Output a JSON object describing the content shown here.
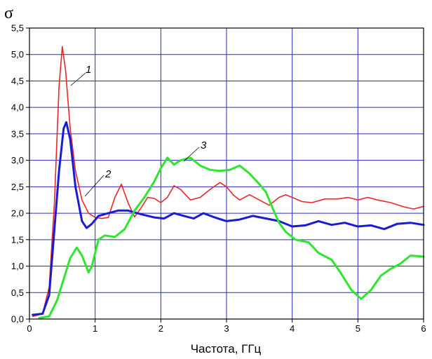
{
  "chart_data": {
    "type": "line",
    "title": "",
    "xlabel": "Частота, ГГц",
    "ylabel": "σ",
    "xlim": [
      0,
      6
    ],
    "ylim": [
      0,
      5.5
    ],
    "x_ticks": [
      "0",
      "1",
      "2",
      "3",
      "4",
      "5",
      "6"
    ],
    "y_ticks": [
      "0,0",
      "0,5",
      "1,0",
      "1,5",
      "2,0",
      "2,5",
      "3,0",
      "3,5",
      "4,0",
      "4,5",
      "5,0",
      "5,5"
    ],
    "grid": true,
    "series": [
      {
        "name": "1",
        "color": "#e8262b",
        "points": [
          [
            0.05,
            0.05
          ],
          [
            0.2,
            0.1
          ],
          [
            0.3,
            0.6
          ],
          [
            0.38,
            2.2
          ],
          [
            0.45,
            4.4
          ],
          [
            0.5,
            5.15
          ],
          [
            0.55,
            4.7
          ],
          [
            0.62,
            3.6
          ],
          [
            0.7,
            2.8
          ],
          [
            0.8,
            2.25
          ],
          [
            0.9,
            2.0
          ],
          [
            1.0,
            1.92
          ],
          [
            1.1,
            1.9
          ],
          [
            1.2,
            1.92
          ],
          [
            1.3,
            2.3
          ],
          [
            1.4,
            2.55
          ],
          [
            1.5,
            2.2
          ],
          [
            1.6,
            1.93
          ],
          [
            1.7,
            2.1
          ],
          [
            1.8,
            2.3
          ],
          [
            1.9,
            2.28
          ],
          [
            2.0,
            2.2
          ],
          [
            2.1,
            2.3
          ],
          [
            2.2,
            2.52
          ],
          [
            2.3,
            2.45
          ],
          [
            2.45,
            2.25
          ],
          [
            2.6,
            2.3
          ],
          [
            2.75,
            2.45
          ],
          [
            2.9,
            2.58
          ],
          [
            3.0,
            2.5
          ],
          [
            3.1,
            2.35
          ],
          [
            3.2,
            2.25
          ],
          [
            3.35,
            2.35
          ],
          [
            3.5,
            2.25
          ],
          [
            3.65,
            2.15
          ],
          [
            3.8,
            2.3
          ],
          [
            3.9,
            2.35
          ],
          [
            4.0,
            2.3
          ],
          [
            4.15,
            2.22
          ],
          [
            4.3,
            2.2
          ],
          [
            4.5,
            2.27
          ],
          [
            4.7,
            2.27
          ],
          [
            4.85,
            2.3
          ],
          [
            5.0,
            2.25
          ],
          [
            5.15,
            2.3
          ],
          [
            5.3,
            2.25
          ],
          [
            5.5,
            2.2
          ],
          [
            5.7,
            2.12
          ],
          [
            5.85,
            2.08
          ],
          [
            6.0,
            2.13
          ]
        ]
      },
      {
        "name": "2",
        "color": "#1b1bd6",
        "points": [
          [
            0.05,
            0.08
          ],
          [
            0.2,
            0.1
          ],
          [
            0.3,
            0.45
          ],
          [
            0.38,
            1.7
          ],
          [
            0.45,
            2.8
          ],
          [
            0.52,
            3.6
          ],
          [
            0.56,
            3.72
          ],
          [
            0.62,
            3.4
          ],
          [
            0.7,
            2.5
          ],
          [
            0.8,
            1.85
          ],
          [
            0.87,
            1.72
          ],
          [
            0.95,
            1.8
          ],
          [
            1.05,
            1.95
          ],
          [
            1.2,
            2.0
          ],
          [
            1.35,
            2.05
          ],
          [
            1.5,
            2.05
          ],
          [
            1.7,
            1.98
          ],
          [
            1.9,
            1.92
          ],
          [
            2.05,
            1.9
          ],
          [
            2.2,
            2.0
          ],
          [
            2.35,
            1.95
          ],
          [
            2.5,
            1.9
          ],
          [
            2.65,
            2.0
          ],
          [
            2.8,
            1.93
          ],
          [
            3.0,
            1.85
          ],
          [
            3.2,
            1.88
          ],
          [
            3.4,
            1.95
          ],
          [
            3.6,
            1.9
          ],
          [
            3.8,
            1.85
          ],
          [
            4.0,
            1.75
          ],
          [
            4.2,
            1.77
          ],
          [
            4.4,
            1.85
          ],
          [
            4.6,
            1.78
          ],
          [
            4.8,
            1.82
          ],
          [
            5.0,
            1.75
          ],
          [
            5.2,
            1.77
          ],
          [
            5.4,
            1.7
          ],
          [
            5.6,
            1.8
          ],
          [
            5.8,
            1.82
          ],
          [
            6.0,
            1.78
          ]
        ]
      },
      {
        "name": "3",
        "color": "#2ee62e",
        "points": [
          [
            0.15,
            0.02
          ],
          [
            0.3,
            0.05
          ],
          [
            0.42,
            0.35
          ],
          [
            0.52,
            0.75
          ],
          [
            0.62,
            1.15
          ],
          [
            0.72,
            1.35
          ],
          [
            0.8,
            1.2
          ],
          [
            0.9,
            0.88
          ],
          [
            0.95,
            1.0
          ],
          [
            1.05,
            1.5
          ],
          [
            1.15,
            1.58
          ],
          [
            1.3,
            1.55
          ],
          [
            1.45,
            1.7
          ],
          [
            1.6,
            2.05
          ],
          [
            1.75,
            2.3
          ],
          [
            1.9,
            2.6
          ],
          [
            2.0,
            2.85
          ],
          [
            2.1,
            3.05
          ],
          [
            2.2,
            2.92
          ],
          [
            2.3,
            3.0
          ],
          [
            2.45,
            3.05
          ],
          [
            2.6,
            2.9
          ],
          [
            2.75,
            2.82
          ],
          [
            2.9,
            2.8
          ],
          [
            3.05,
            2.82
          ],
          [
            3.2,
            2.9
          ],
          [
            3.35,
            2.75
          ],
          [
            3.5,
            2.55
          ],
          [
            3.6,
            2.4
          ],
          [
            3.7,
            2.1
          ],
          [
            3.8,
            1.82
          ],
          [
            3.9,
            1.65
          ],
          [
            4.05,
            1.5
          ],
          [
            4.25,
            1.45
          ],
          [
            4.4,
            1.25
          ],
          [
            4.6,
            1.12
          ],
          [
            4.75,
            0.85
          ],
          [
            4.9,
            0.55
          ],
          [
            5.05,
            0.38
          ],
          [
            5.2,
            0.55
          ],
          [
            5.35,
            0.82
          ],
          [
            5.5,
            0.95
          ],
          [
            5.65,
            1.05
          ],
          [
            5.8,
            1.2
          ],
          [
            6.0,
            1.18
          ]
        ]
      }
    ],
    "annotations": [
      "1",
      "2",
      "3"
    ]
  }
}
